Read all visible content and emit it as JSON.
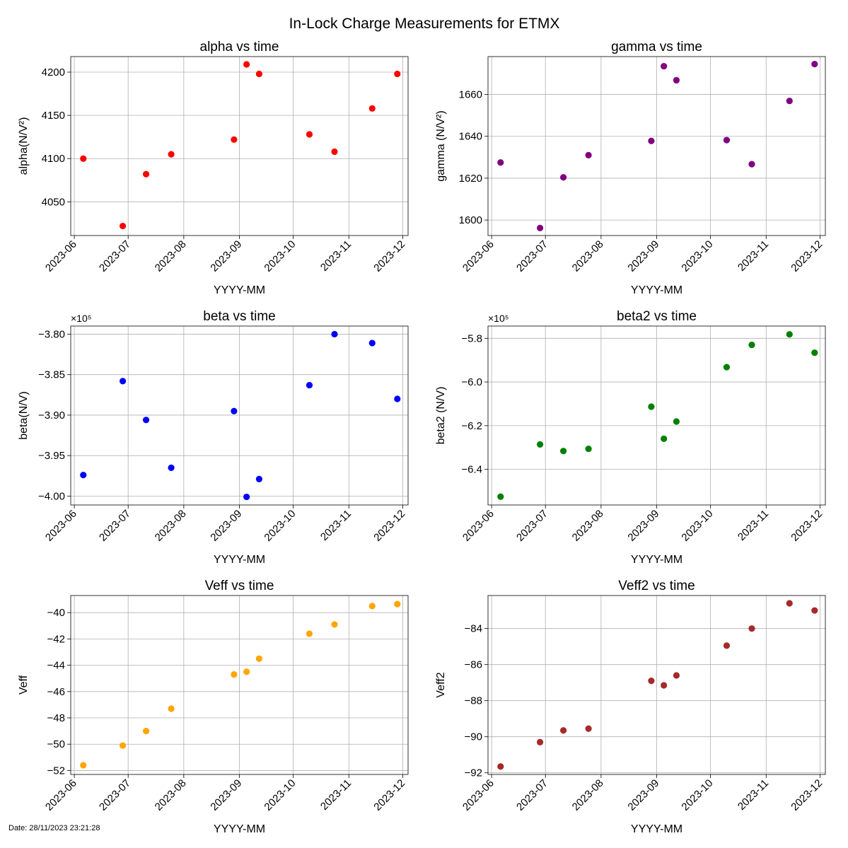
{
  "figure_title": "In-Lock Charge Measurements for ETMX",
  "footer_text": "Date: 28/11/2023 23:21:28",
  "chart_data": [
    {
      "type": "scatter",
      "title": "alpha vs time",
      "xlabel": "YYYY-MM",
      "ylabel": "alpha(N/V²)",
      "color": "#ff0000",
      "offset_label": "",
      "x": [
        "2023-06-06",
        "2023-06-28",
        "2023-07-11",
        "2023-07-25",
        "2023-08-29",
        "2023-09-05",
        "2023-09-12",
        "2023-10-10",
        "2023-10-24",
        "2023-11-14",
        "2023-11-28"
      ],
      "y": [
        4100,
        4022,
        4082,
        4105,
        4122,
        4209,
        4198,
        4128,
        4108,
        4158,
        4198
      ],
      "ylim": [
        4011,
        4218
      ],
      "yticks": [
        4050,
        4100,
        4150,
        4200
      ],
      "ytick_labels": [
        "4050",
        "4100",
        "4150",
        "4200"
      ],
      "xticks": [
        "2023-06",
        "2023-07",
        "2023-08",
        "2023-09",
        "2023-10",
        "2023-11",
        "2023-12"
      ],
      "xlim": [
        "2023-05-30",
        "2023-12-04"
      ],
      "grid": true
    },
    {
      "type": "scatter",
      "title": "gamma vs time",
      "xlabel": "YYYY-MM",
      "ylabel": "gamma (N/V²)",
      "color": "#800080",
      "offset_label": "",
      "x": [
        "2023-06-06",
        "2023-06-28",
        "2023-07-11",
        "2023-07-25",
        "2023-08-29",
        "2023-09-05",
        "2023-09-12",
        "2023-10-10",
        "2023-10-24",
        "2023-11-14",
        "2023-11-28"
      ],
      "y": [
        1627.5,
        1596.2,
        1620.4,
        1631.0,
        1637.8,
        1673.5,
        1666.8,
        1638.2,
        1626.7,
        1656.9,
        1674.5
      ],
      "ylim": [
        1592.6,
        1678.1
      ],
      "yticks": [
        1600,
        1620,
        1640,
        1660
      ],
      "ytick_labels": [
        "1600",
        "1620",
        "1640",
        "1660"
      ],
      "xticks": [
        "2023-06",
        "2023-07",
        "2023-08",
        "2023-09",
        "2023-10",
        "2023-11",
        "2023-12"
      ],
      "xlim": [
        "2023-05-30",
        "2023-12-04"
      ],
      "grid": true
    },
    {
      "type": "scatter",
      "title": "beta vs time",
      "xlabel": "YYYY-MM",
      "ylabel": "beta(N/V)",
      "color": "#0000ff",
      "offset_label": "×10⁵",
      "x": [
        "2023-06-06",
        "2023-06-28",
        "2023-07-11",
        "2023-07-25",
        "2023-08-29",
        "2023-09-05",
        "2023-09-12",
        "2023-10-10",
        "2023-10-24",
        "2023-11-14",
        "2023-11-28"
      ],
      "y": [
        -3.974,
        -3.858,
        -3.906,
        -3.965,
        -3.895,
        -4.001,
        -3.979,
        -3.863,
        -3.8,
        -3.811,
        -3.88
      ],
      "ylim": [
        -4.011,
        -3.79
      ],
      "yticks": [
        -4.0,
        -3.95,
        -3.9,
        -3.85,
        -3.8
      ],
      "ytick_labels": [
        "−4.00",
        "−3.95",
        "−3.90",
        "−3.85",
        "−3.80"
      ],
      "xticks": [
        "2023-06",
        "2023-07",
        "2023-08",
        "2023-09",
        "2023-10",
        "2023-11",
        "2023-12"
      ],
      "xlim": [
        "2023-05-30",
        "2023-12-04"
      ],
      "grid": true
    },
    {
      "type": "scatter",
      "title": "beta2 vs time",
      "xlabel": "YYYY-MM",
      "ylabel": "beta2 (N/V)",
      "color": "#008000",
      "offset_label": "×10⁵",
      "x": [
        "2023-06-06",
        "2023-06-28",
        "2023-07-11",
        "2023-07-25",
        "2023-08-29",
        "2023-09-05",
        "2023-09-12",
        "2023-10-10",
        "2023-10-24",
        "2023-11-14",
        "2023-11-28"
      ],
      "y": [
        -6.525,
        -6.286,
        -6.316,
        -6.306,
        -6.113,
        -6.26,
        -6.181,
        -5.932,
        -5.83,
        -5.782,
        -5.866
      ],
      "ylim": [
        -6.563,
        -5.744
      ],
      "yticks": [
        -6.4,
        -6.2,
        -6.0,
        -5.8
      ],
      "ytick_labels": [
        "−6.4",
        "−6.2",
        "−6.0",
        "−5.8"
      ],
      "xticks": [
        "2023-06",
        "2023-07",
        "2023-08",
        "2023-09",
        "2023-10",
        "2023-11",
        "2023-12"
      ],
      "xlim": [
        "2023-05-30",
        "2023-12-04"
      ],
      "grid": true
    },
    {
      "type": "scatter",
      "title": "Veff vs time",
      "xlabel": "YYYY-MM",
      "ylabel": "Veff",
      "color": "#ffa500",
      "offset_label": "",
      "x": [
        "2023-06-06",
        "2023-06-28",
        "2023-07-11",
        "2023-07-25",
        "2023-08-29",
        "2023-09-05",
        "2023-09-12",
        "2023-10-10",
        "2023-10-24",
        "2023-11-14",
        "2023-11-28"
      ],
      "y": [
        -51.6,
        -50.1,
        -49.0,
        -47.3,
        -44.7,
        -44.5,
        -43.5,
        -41.6,
        -40.9,
        -39.5,
        -39.35
      ],
      "ylim": [
        -52.3,
        -38.7
      ],
      "yticks": [
        -52,
        -50,
        -48,
        -46,
        -44,
        -42,
        -40
      ],
      "ytick_labels": [
        "−52",
        "−50",
        "−48",
        "−46",
        "−44",
        "−42",
        "−40"
      ],
      "xticks": [
        "2023-06",
        "2023-07",
        "2023-08",
        "2023-09",
        "2023-10",
        "2023-11",
        "2023-12"
      ],
      "xlim": [
        "2023-05-30",
        "2023-12-04"
      ],
      "grid": true
    },
    {
      "type": "scatter",
      "title": "Veff2 vs time",
      "xlabel": "YYYY-MM",
      "ylabel": "Veff2",
      "color": "#a52a2a",
      "offset_label": "",
      "x": [
        "2023-06-06",
        "2023-06-28",
        "2023-07-11",
        "2023-07-25",
        "2023-08-29",
        "2023-09-05",
        "2023-09-12",
        "2023-10-10",
        "2023-10-24",
        "2023-11-14",
        "2023-11-28"
      ],
      "y": [
        -91.65,
        -90.3,
        -89.65,
        -89.55,
        -86.9,
        -87.15,
        -86.6,
        -84.95,
        -84.0,
        -82.6,
        -83.0
      ],
      "ylim": [
        -92.09,
        -82.17
      ],
      "yticks": [
        -92,
        -90,
        -88,
        -86,
        -84
      ],
      "ytick_labels": [
        "−92",
        "−90",
        "−88",
        "−86",
        "−84"
      ],
      "xticks": [
        "2023-06",
        "2023-07",
        "2023-08",
        "2023-09",
        "2023-10",
        "2023-11",
        "2023-12"
      ],
      "xlim": [
        "2023-05-30",
        "2023-12-04"
      ],
      "grid": true
    }
  ]
}
